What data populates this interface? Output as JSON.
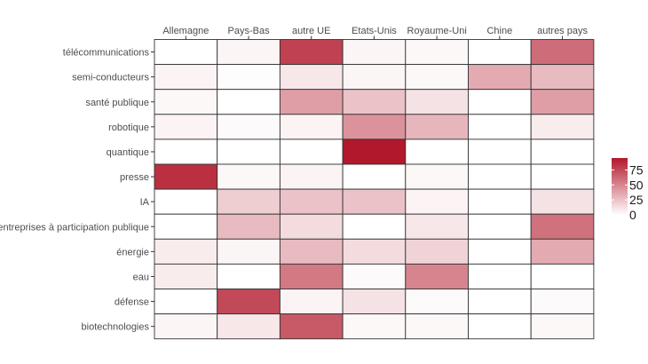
{
  "chart_data": {
    "type": "heatmap",
    "title": "",
    "xlabel": "",
    "ylabel": "",
    "x_categories": [
      "Allemagne",
      "Pays-Bas",
      "autre UE",
      "Etats-Unis",
      "Royaume-Uni",
      "Chine",
      "autres pays"
    ],
    "y_categories": [
      "télécommunications",
      "semi-conducteurs",
      "santé publique",
      "robotique",
      "quantique",
      "presse",
      "IA",
      "entreprises à participation publique",
      "énergie",
      "eau",
      "défense",
      "biotechnologies"
    ],
    "values": [
      [
        0,
        4,
        78,
        4,
        3,
        0,
        60
      ],
      [
        5,
        1,
        10,
        4,
        3,
        35,
        28
      ],
      [
        3,
        0,
        40,
        25,
        12,
        0,
        40
      ],
      [
        5,
        2,
        5,
        45,
        30,
        0,
        8
      ],
      [
        0,
        0,
        0,
        95,
        0,
        0,
        0
      ],
      [
        85,
        3,
        5,
        0,
        3,
        0,
        0
      ],
      [
        0,
        20,
        25,
        25,
        5,
        0,
        12
      ],
      [
        0,
        28,
        15,
        0,
        10,
        0,
        58
      ],
      [
        8,
        4,
        28,
        15,
        18,
        0,
        35
      ],
      [
        8,
        0,
        55,
        2,
        50,
        0,
        0
      ],
      [
        0,
        75,
        5,
        12,
        2,
        0,
        2
      ],
      [
        4,
        10,
        68,
        3,
        3,
        0,
        3
      ]
    ],
    "scale": {
      "min": 0,
      "max": 95,
      "low_color": "#ffffff",
      "high_color": "#b2182b"
    },
    "legend": {
      "position": "right",
      "ticks": [
        "75",
        "50",
        "25",
        "0"
      ],
      "tick_values": [
        75,
        50,
        25,
        0
      ]
    },
    "grid": true
  }
}
